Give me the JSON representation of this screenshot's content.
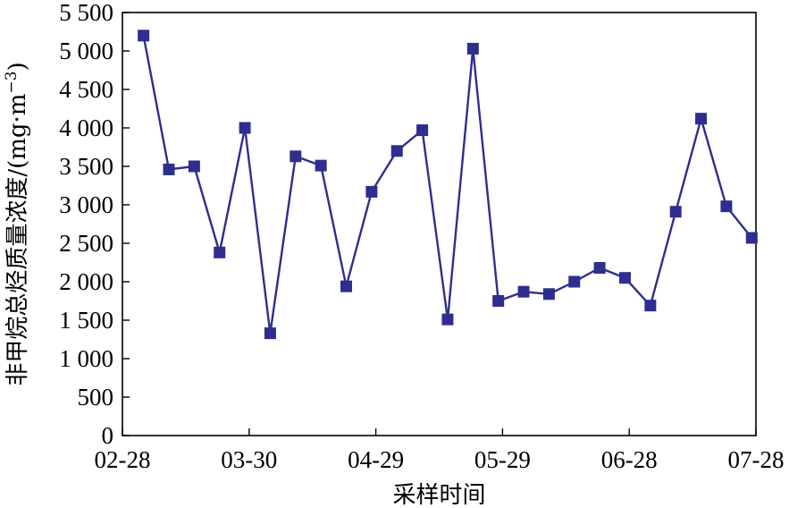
{
  "chart_data": {
    "type": "line",
    "xlabel": "采样时间",
    "ylabel": "非甲烷总烃质量浓度/(mg·m",
    "ylabel_sup": "−3",
    "ylabel_close": ")",
    "x_ticks": [
      "02-28",
      "03-30",
      "04-29",
      "05-29",
      "06-28",
      "07-28"
    ],
    "y_ticks": [
      "0",
      "500",
      "1 000",
      "1 500",
      "2 000",
      "2 500",
      "3 000",
      "3 500",
      "4 000",
      "4 500",
      "5 000",
      "5 500"
    ],
    "ylim": [
      0,
      5500
    ],
    "xlim_days": [
      0,
      150
    ],
    "grid": false,
    "series": [
      {
        "color": "#2e2e8f",
        "marker": "square",
        "points": [
          {
            "date": "03-05",
            "day": 5,
            "value": 5200
          },
          {
            "date": "03-11",
            "day": 11,
            "value": 3460
          },
          {
            "date": "03-17",
            "day": 17,
            "value": 3500
          },
          {
            "date": "03-23",
            "day": 23,
            "value": 2380
          },
          {
            "date": "03-29",
            "day": 29,
            "value": 4000
          },
          {
            "date": "04-04",
            "day": 35,
            "value": 1330
          },
          {
            "date": "04-10",
            "day": 41,
            "value": 3630
          },
          {
            "date": "04-16",
            "day": 47,
            "value": 3510
          },
          {
            "date": "04-22",
            "day": 53,
            "value": 1940
          },
          {
            "date": "04-28",
            "day": 59,
            "value": 3170
          },
          {
            "date": "05-04",
            "day": 65,
            "value": 3700
          },
          {
            "date": "05-10",
            "day": 71,
            "value": 3970
          },
          {
            "date": "05-16",
            "day": 77,
            "value": 1510
          },
          {
            "date": "05-22",
            "day": 83,
            "value": 5030
          },
          {
            "date": "05-28",
            "day": 89,
            "value": 1750
          },
          {
            "date": "06-03",
            "day": 95,
            "value": 1870
          },
          {
            "date": "06-09",
            "day": 101,
            "value": 1840
          },
          {
            "date": "06-15",
            "day": 107,
            "value": 2000
          },
          {
            "date": "06-21",
            "day": 113,
            "value": 2180
          },
          {
            "date": "06-27",
            "day": 119,
            "value": 2050
          },
          {
            "date": "07-03",
            "day": 125,
            "value": 1690
          },
          {
            "date": "07-09",
            "day": 131,
            "value": 2910
          },
          {
            "date": "07-15",
            "day": 137,
            "value": 4120
          },
          {
            "date": "07-21",
            "day": 143,
            "value": 2980
          },
          {
            "date": "07-27",
            "day": 149,
            "value": 2570
          }
        ]
      }
    ]
  }
}
